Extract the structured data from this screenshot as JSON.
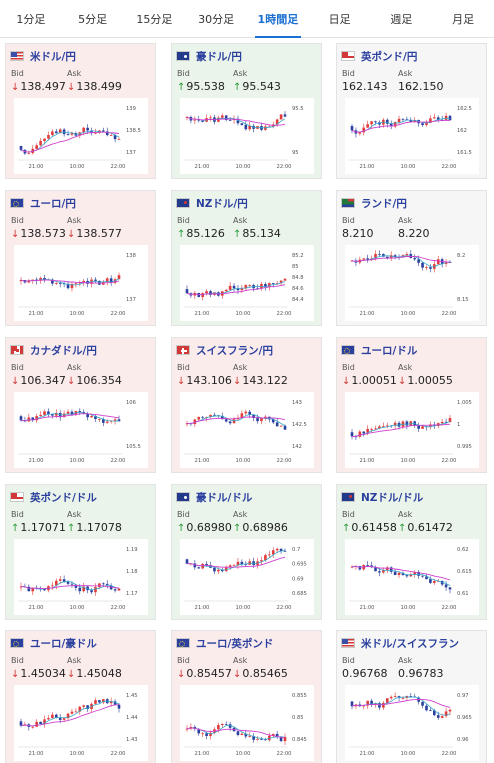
{
  "tabs": [
    "1分足",
    "5分足",
    "15分足",
    "30分足",
    "1時間足",
    "日足",
    "週足",
    "月足"
  ],
  "active_tab": 4,
  "bid_label": "Bid",
  "ask_label": "Ask",
  "colors": {
    "up_card": "#eaf4ea",
    "down_card": "#fbecec",
    "flat_card": "#f6f6f6",
    "up_arrow": "#2a9a3a",
    "down_arrow": "#d23838",
    "active_tab": "#1a6fd0",
    "pair_name": "#2a3f9e"
  },
  "pairs": [
    {
      "name": "米ドル/円",
      "flag": "us-flag",
      "trend": "down",
      "bid": "138.497",
      "ask": "138.499",
      "chart": {
        "yticks": [
          "139",
          "138.5",
          "137"
        ],
        "xticks": [
          "21:00",
          "10:00",
          "22:00"
        ]
      }
    },
    {
      "name": "豪ドル/円",
      "flag": "au-flag",
      "trend": "up",
      "bid": "95.538",
      "ask": "95.543",
      "chart": {
        "yticks": [
          "95.5",
          "95"
        ],
        "xticks": [
          "21:00",
          "10:00",
          "22:00"
        ]
      }
    },
    {
      "name": "英ポンド/円",
      "flag": "gb-flag",
      "trend": "flat",
      "bid": "162.143",
      "ask": "162.150",
      "chart": {
        "yticks": [
          "162.5",
          "162",
          "161.5"
        ],
        "xticks": [
          "21:00",
          "10:00",
          "22:00"
        ]
      }
    },
    {
      "name": "ユーロ/円",
      "flag": "eu-flag",
      "trend": "down",
      "bid": "138.573",
      "ask": "138.577",
      "chart": {
        "yticks": [
          "138",
          "137"
        ],
        "xticks": [
          "21:00",
          "10:00",
          "22:00"
        ]
      }
    },
    {
      "name": "NZドル/円",
      "flag": "nz-flag",
      "trend": "up",
      "bid": "85.126",
      "ask": "85.134",
      "chart": {
        "yticks": [
          "85.2",
          "85",
          "84.8",
          "84.6",
          "84.4"
        ],
        "xticks": [
          "21:00",
          "10:00",
          "22:00"
        ]
      }
    },
    {
      "name": "ランド/円",
      "flag": "za-flag",
      "trend": "flat",
      "bid": "8.210",
      "ask": "8.220",
      "chart": {
        "yticks": [
          "8.2",
          "8.15"
        ],
        "xticks": [
          "21:00",
          "10:00",
          "22:00"
        ]
      }
    },
    {
      "name": "カナダドル/円",
      "flag": "ca-flag",
      "trend": "down",
      "bid": "106.347",
      "ask": "106.354",
      "chart": {
        "yticks": [
          "106",
          "105.5"
        ],
        "xticks": [
          "21:00",
          "10:00",
          "22:00"
        ]
      }
    },
    {
      "name": "スイスフラン/円",
      "flag": "ch-flag",
      "trend": "down",
      "bid": "143.106",
      "ask": "143.122",
      "chart": {
        "yticks": [
          "143",
          "142.5",
          "142"
        ],
        "xticks": [
          "21:00",
          "10:00",
          "22:00"
        ]
      }
    },
    {
      "name": "ユーロ/ドル",
      "flag": "eu-flag",
      "trend": "down",
      "bid": "1.00051",
      "ask": "1.00055",
      "chart": {
        "yticks": [
          "1.005",
          "1",
          "0.995"
        ],
        "xticks": [
          "21:00",
          "10:00",
          "22:00"
        ]
      }
    },
    {
      "name": "英ポンド/ドル",
      "flag": "gb-flag",
      "trend": "up",
      "bid": "1.17071",
      "ask": "1.17078",
      "chart": {
        "yticks": [
          "1.19",
          "1.18",
          "1.17"
        ],
        "xticks": [
          "21:00",
          "10:00",
          "22:00"
        ]
      }
    },
    {
      "name": "豪ドル/ドル",
      "flag": "au-flag",
      "trend": "up",
      "bid": "0.68980",
      "ask": "0.68986",
      "chart": {
        "yticks": [
          "0.7",
          "0.695",
          "0.69",
          "0.685"
        ],
        "xticks": [
          "21:00",
          "10:00",
          "22:00"
        ]
      }
    },
    {
      "name": "NZドル/ドル",
      "flag": "nz-flag",
      "trend": "up",
      "bid": "0.61458",
      "ask": "0.61472",
      "chart": {
        "yticks": [
          "0.62",
          "0.615",
          "0.61"
        ],
        "xticks": [
          "21:00",
          "10:00",
          "22:00"
        ]
      }
    },
    {
      "name": "ユーロ/豪ドル",
      "flag": "eu-flag",
      "trend": "down",
      "bid": "1.45034",
      "ask": "1.45048",
      "chart": {
        "yticks": [
          "1.45",
          "1.44",
          "1.43"
        ],
        "xticks": [
          "21:00",
          "10:00",
          "22:00"
        ]
      }
    },
    {
      "name": "ユーロ/英ポンド",
      "flag": "eu-flag",
      "trend": "down",
      "bid": "0.85457",
      "ask": "0.85465",
      "chart": {
        "yticks": [
          "0.855",
          "0.85",
          "0.845"
        ],
        "xticks": [
          "21:00",
          "10:00",
          "22:00"
        ]
      }
    },
    {
      "name": "米ドル/スイスフラン",
      "flag": "us-flag",
      "trend": "flat",
      "bid": "0.96768",
      "ask": "0.96783",
      "chart": {
        "yticks": [
          "0.97",
          "0.965",
          "0.96"
        ],
        "xticks": [
          "21:00",
          "10:00",
          "22:00"
        ]
      }
    }
  ]
}
